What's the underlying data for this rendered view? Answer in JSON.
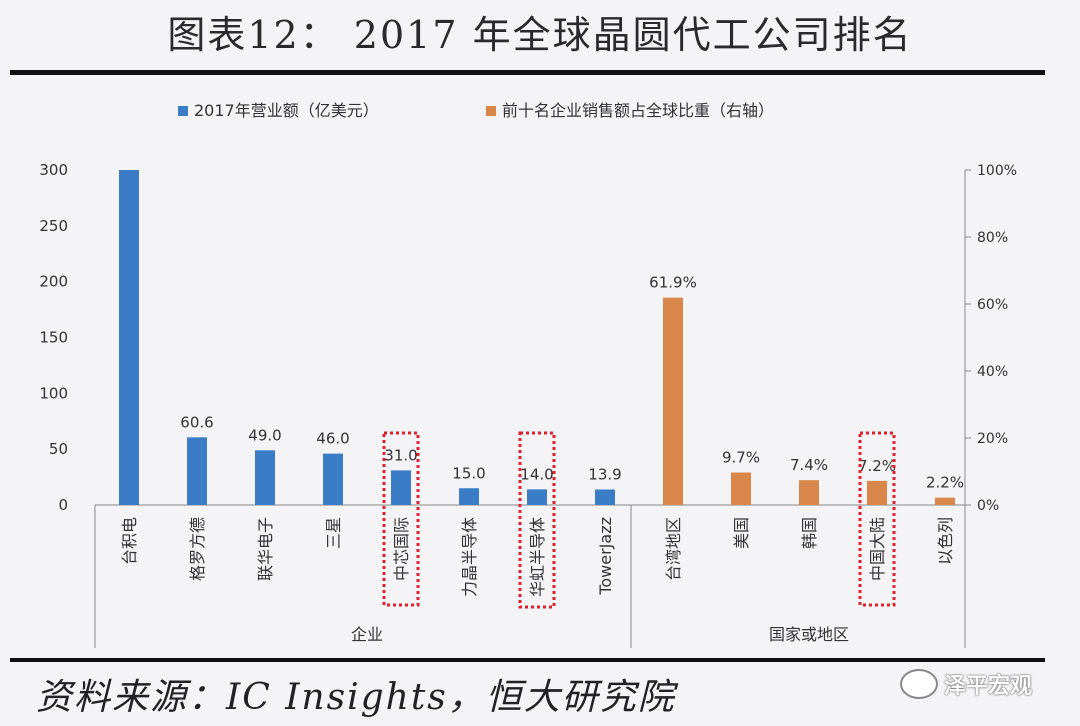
{
  "title": "图表12： 2017 年全球晶圆代工公司排名",
  "source": "资料来源：IC Insights，恒大研究院",
  "watermark": "泽平宏观",
  "colors": {
    "blue": "#3a7dc6",
    "orange": "#d9864a",
    "highlight": "#e0202a"
  },
  "chart_data": {
    "type": "bar",
    "legend": [
      {
        "name": "2017年营业额（亿美元）",
        "color": "#3a7dc6"
      },
      {
        "name": "前十名企业销售额占全球比重（右轴）",
        "color": "#d9864a"
      }
    ],
    "left_axis": {
      "ylim": [
        0,
        300
      ],
      "ticks": [
        "0",
        "50",
        "100",
        "150",
        "200",
        "250",
        "300"
      ]
    },
    "right_axis": {
      "ylim": [
        0,
        100
      ],
      "ticks": [
        "0%",
        "20%",
        "40%",
        "60%",
        "80%",
        "100%"
      ]
    },
    "groups": [
      {
        "name": "企业",
        "series": "2017年营业额（亿美元）",
        "categories": [
          "台积电",
          "格罗方德",
          "联华电子",
          "三星",
          "中芯国际",
          "力晶半导体",
          "华虹半导体",
          "TowerJazz"
        ],
        "values": [
          300,
          60.6,
          49.0,
          46.0,
          31.0,
          15.0,
          14.0,
          13.9
        ],
        "labels": [
          "",
          "60.6",
          "49.0",
          "46.0",
          "31.0",
          "15.0",
          "14.0",
          "13.9"
        ],
        "highlighted": [
          "中芯国际",
          "华虹半导体"
        ]
      },
      {
        "name": "国家或地区",
        "series": "前十名企业销售额占全球比重（右轴）",
        "categories": [
          "台湾地区",
          "美国",
          "韩国",
          "中国大陆",
          "以色列"
        ],
        "values": [
          61.9,
          9.7,
          7.4,
          7.2,
          2.2
        ],
        "labels": [
          "61.9%",
          "9.7%",
          "7.4%",
          "7.2%",
          "2.2%"
        ],
        "highlighted": [
          "中国大陆"
        ]
      }
    ]
  }
}
